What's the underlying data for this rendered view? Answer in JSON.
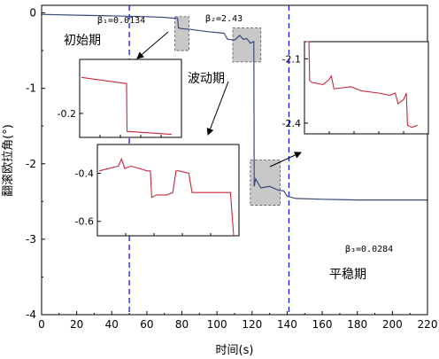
{
  "chart_data": {
    "type": "line",
    "xlabel": "时间(s)",
    "ylabel": "翻滚欧拉角(°)",
    "xlim": [
      0,
      220
    ],
    "ylim": [
      -4,
      0.1
    ],
    "xticks": [
      "0",
      "20",
      "40",
      "60",
      "80",
      "100",
      "120",
      "140",
      "160",
      "180",
      "200",
      "220"
    ],
    "yticks": [
      "0",
      "-1",
      "-2",
      "-3",
      "-4"
    ],
    "colors": {
      "main": "#3a4a7a",
      "inset": "#c8283c",
      "divider": "#1a1aff",
      "highlight": "#c8c8c8"
    },
    "series": [
      {
        "x": [
          0,
          20,
          40,
          60,
          70,
          75,
          77.5,
          78,
          80,
          85,
          95,
          104,
          106,
          110,
          113,
          115,
          117,
          119,
          121,
          121.2,
          122,
          125,
          130,
          135,
          138,
          140,
          145,
          160,
          180,
          200,
          220
        ],
        "y": [
          -0.02,
          -0.03,
          -0.04,
          -0.05,
          -0.06,
          -0.07,
          -0.07,
          -0.2,
          -0.21,
          -0.22,
          -0.25,
          -0.27,
          -0.35,
          -0.36,
          -0.3,
          -0.35,
          -0.34,
          -0.4,
          -0.38,
          -2.3,
          -2.2,
          -2.32,
          -2.3,
          -2.35,
          -2.36,
          -2.43,
          -2.46,
          -2.47,
          -2.48,
          -2.48,
          -2.48
        ]
      }
    ],
    "dividers_x": [
      50,
      141
    ],
    "highlights": [
      {
        "x": [
          76,
          84
        ],
        "y": [
          -0.5,
          -0.05
        ]
      },
      {
        "x": [
          109,
          125
        ],
        "y": [
          -0.65,
          -0.2
        ]
      },
      {
        "x": [
          119,
          136
        ],
        "y": [
          -2.55,
          -1.95
        ]
      }
    ],
    "annotations": {
      "beta1": "β₁=0.0134",
      "beta2": "β₂=2.43",
      "beta3": "β₃=0.0284",
      "phase1": "初始期",
      "phase2": "波动期",
      "phase3": "平稳期"
    },
    "insets": [
      {
        "yticks": [
          "-0.2"
        ],
        "ylim": [
          -0.28,
          -0.02
        ],
        "x": [
          0,
          0.95,
          1.0,
          1.01,
          2.0
        ],
        "y": [
          -0.08,
          -0.1,
          -0.1,
          -0.26,
          -0.27
        ]
      },
      {
        "yticks": [
          "-0.4",
          "-0.6"
        ],
        "ylim": [
          -0.66,
          -0.28
        ],
        "x": [
          0,
          0.3,
          0.35,
          0.4,
          0.5,
          0.75,
          0.8,
          0.82,
          0.9,
          1.05,
          1.15,
          1.2,
          1.25,
          1.4,
          1.45,
          1.6,
          1.62,
          1.7,
          1.75,
          2.0,
          2.05,
          2.1,
          2.1
        ],
        "y": [
          -0.39,
          -0.37,
          -0.34,
          -0.38,
          -0.37,
          -0.39,
          -0.39,
          -0.5,
          -0.49,
          -0.49,
          -0.48,
          -0.39,
          -0.39,
          -0.4,
          -0.48,
          -0.48,
          -0.48,
          -0.48,
          -0.48,
          -0.48,
          -0.48,
          -0.66,
          -0.66
        ]
      },
      {
        "yticks": [
          "-2.1",
          "-2.4"
        ],
        "ylim": [
          -2.45,
          -2.02
        ],
        "x": [
          0,
          0.05,
          0.06,
          0.1,
          0.3,
          0.4,
          0.45,
          0.5,
          0.8,
          1.0,
          1.3,
          1.5,
          1.6,
          1.65,
          1.7,
          1.75,
          1.8,
          1.82,
          1.9,
          2.0
        ],
        "y": [
          -2.02,
          -2.02,
          -2.2,
          -2.21,
          -2.22,
          -2.2,
          -2.18,
          -2.24,
          -2.23,
          -2.25,
          -2.26,
          -2.27,
          -2.26,
          -2.31,
          -2.3,
          -2.29,
          -2.26,
          -2.41,
          -2.42,
          -2.41
        ]
      }
    ]
  }
}
